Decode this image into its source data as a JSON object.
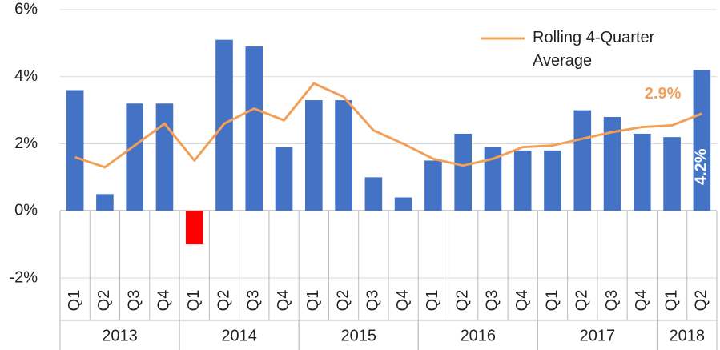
{
  "chart_data": {
    "type": "bar",
    "categories": [
      "Q1",
      "Q2",
      "Q3",
      "Q4",
      "Q1",
      "Q2",
      "Q3",
      "Q4",
      "Q1",
      "Q2",
      "Q3",
      "Q4",
      "Q1",
      "Q2",
      "Q3",
      "Q4",
      "Q1",
      "Q2",
      "Q3",
      "Q4",
      "Q1",
      "Q2"
    ],
    "groups": [
      {
        "label": "2013",
        "span": 4
      },
      {
        "label": "2014",
        "span": 4
      },
      {
        "label": "2015",
        "span": 4
      },
      {
        "label": "2016",
        "span": 4
      },
      {
        "label": "2017",
        "span": 4
      },
      {
        "label": "2018",
        "span": 2
      }
    ],
    "series": [
      {
        "type": "bar",
        "color": "#4472c4",
        "colors": [
          "#4472c4",
          "#4472c4",
          "#4472c4",
          "#4472c4",
          "#ff0000",
          "#4472c4",
          "#4472c4",
          "#4472c4",
          "#4472c4",
          "#4472c4",
          "#4472c4",
          "#4472c4",
          "#4472c4",
          "#4472c4",
          "#4472c4",
          "#4472c4",
          "#4472c4",
          "#4472c4",
          "#4472c4",
          "#4472c4",
          "#4472c4",
          "#4472c4"
        ],
        "values": [
          3.6,
          0.5,
          3.2,
          3.2,
          -1.0,
          5.1,
          4.9,
          1.9,
          3.3,
          3.3,
          1.0,
          0.4,
          1.5,
          2.3,
          1.9,
          1.8,
          1.8,
          3.0,
          2.8,
          2.3,
          2.2,
          4.2
        ],
        "value_labels": {
          "21": "4.2%"
        }
      },
      {
        "type": "line",
        "name": "Rolling 4-Quarter Average",
        "color": "#f2a057",
        "values": [
          1.6,
          1.3,
          1.95,
          2.6,
          1.5,
          2.6,
          3.05,
          2.7,
          3.8,
          3.4,
          2.4,
          2.0,
          1.55,
          1.35,
          1.55,
          1.9,
          1.95,
          2.15,
          2.35,
          2.5,
          2.55,
          2.9
        ],
        "value_labels": {
          "21": "2.9%"
        }
      }
    ],
    "ylim": [
      -2,
      6
    ],
    "yticks": [
      {
        "value": -2,
        "label": "-2%"
      },
      {
        "value": 0,
        "label": "0%"
      },
      {
        "value": 2,
        "label": "2%"
      },
      {
        "value": 4,
        "label": "4%"
      },
      {
        "value": 6,
        "label": "6%"
      }
    ],
    "grid": true,
    "legend": "upper right"
  }
}
